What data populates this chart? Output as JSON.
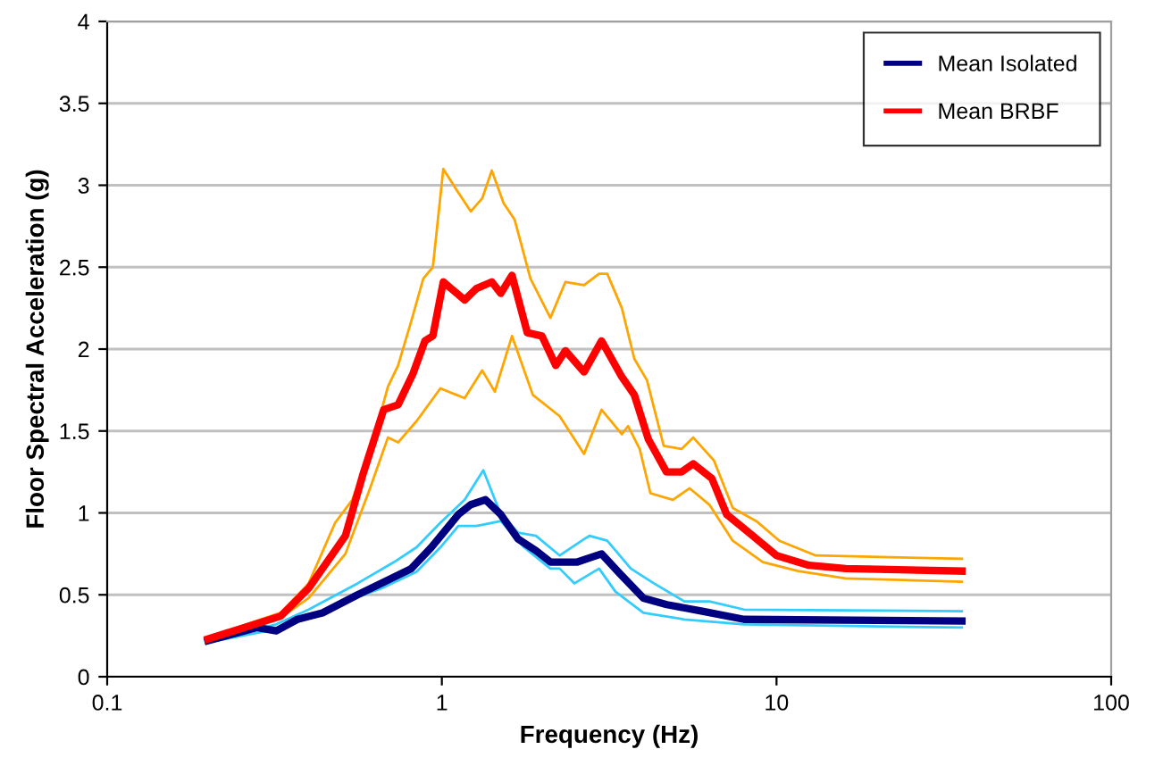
{
  "chart_data": {
    "type": "line",
    "xlabel": "Frequency (Hz)",
    "ylabel": "Floor Spectral Acceleration (g)",
    "log": "x",
    "xlim": [
      0.1,
      100
    ],
    "xticks": [
      0.1,
      1,
      10,
      100
    ],
    "ylim": [
      0,
      4
    ],
    "yticks": [
      0,
      0.5,
      1,
      1.5,
      2,
      2.5,
      3,
      3.5,
      4
    ],
    "grid": "y",
    "legend": "top right",
    "marker": "none",
    "line_style": "solid",
    "series": [
      {
        "color": "#ffa500",
        "x": [
          0.2,
          0.33,
          0.4,
          0.48,
          0.54,
          0.61,
          0.69,
          0.74,
          0.81,
          0.88,
          0.94,
          1.01,
          1.1,
          1.22,
          1.32,
          1.41,
          1.53,
          1.65,
          1.84,
          2.11,
          2.34,
          2.66,
          2.95,
          3.12,
          3.45,
          3.76,
          4.1,
          4.6,
          5.2,
          5.64,
          6.5,
          7.4,
          8.7,
          10.2,
          13.1,
          35.8
        ],
        "values": [
          0.24,
          0.39,
          0.57,
          0.94,
          1.08,
          1.37,
          1.77,
          1.9,
          2.17,
          2.43,
          2.5,
          3.1,
          2.98,
          2.84,
          2.92,
          3.09,
          2.89,
          2.79,
          2.43,
          2.19,
          2.41,
          2.39,
          2.46,
          2.46,
          2.25,
          1.94,
          1.81,
          1.41,
          1.39,
          1.46,
          1.32,
          1.03,
          0.95,
          0.83,
          0.74,
          0.72
        ]
      },
      {
        "color": "#ffa500",
        "x": [
          0.2,
          0.33,
          0.4,
          0.515,
          0.61,
          0.69,
          0.74,
          0.84,
          0.99,
          1.17,
          1.32,
          1.44,
          1.62,
          1.87,
          2.25,
          2.66,
          3.0,
          3.45,
          3.6,
          3.9,
          4.2,
          4.9,
          5.5,
          6.3,
          7.4,
          9.1,
          11.6,
          16.1,
          35.8
        ],
        "values": [
          0.23,
          0.36,
          0.48,
          0.75,
          1.15,
          1.46,
          1.43,
          1.56,
          1.76,
          1.7,
          1.87,
          1.74,
          2.08,
          1.72,
          1.59,
          1.36,
          1.63,
          1.48,
          1.53,
          1.39,
          1.12,
          1.08,
          1.15,
          1.05,
          0.83,
          0.7,
          0.645,
          0.6,
          0.58
        ]
      },
      {
        "color": "#33ccff",
        "x": [
          0.2,
          0.32,
          0.4,
          0.56,
          0.72,
          0.84,
          0.99,
          1.17,
          1.33,
          1.5,
          1.69,
          1.91,
          2.25,
          2.66,
          2.76,
          3.12,
          3.67,
          4.3,
          5.3,
          6.3,
          8.0,
          35.8
        ],
        "values": [
          0.22,
          0.32,
          0.41,
          0.57,
          0.7,
          0.79,
          0.94,
          1.08,
          1.26,
          0.99,
          0.88,
          0.86,
          0.74,
          0.84,
          0.86,
          0.83,
          0.66,
          0.57,
          0.46,
          0.46,
          0.41,
          0.4
        ]
      },
      {
        "color": "#33ccff",
        "x": [
          0.2,
          0.34,
          0.515,
          0.66,
          0.84,
          0.99,
          1.12,
          1.27,
          1.5,
          1.76,
          2.11,
          2.25,
          2.49,
          2.95,
          3.3,
          4.0,
          5.3,
          8.0,
          35.8
        ],
        "values": [
          0.21,
          0.3,
          0.46,
          0.54,
          0.64,
          0.79,
          0.92,
          0.92,
          0.95,
          0.79,
          0.66,
          0.66,
          0.57,
          0.66,
          0.52,
          0.39,
          0.35,
          0.32,
          0.3
        ]
      },
      {
        "name": "Mean Isolated",
        "color": "#000080",
        "x": [
          0.2,
          0.28,
          0.32,
          0.37,
          0.44,
          0.56,
          0.69,
          0.81,
          0.93,
          1.12,
          1.22,
          1.35,
          1.5,
          1.69,
          1.91,
          2.11,
          2.54,
          3.0,
          3.4,
          4.0,
          4.7,
          6.0,
          8.0,
          35.8
        ],
        "values": [
          0.22,
          0.3,
          0.28,
          0.35,
          0.39,
          0.5,
          0.59,
          0.66,
          0.79,
          0.99,
          1.05,
          1.08,
          0.99,
          0.84,
          0.77,
          0.7,
          0.7,
          0.75,
          0.63,
          0.48,
          0.44,
          0.4,
          0.35,
          0.34
        ]
      },
      {
        "name": "Mean BRBF",
        "color": "#ff0000",
        "x": [
          0.2,
          0.33,
          0.4,
          0.515,
          0.58,
          0.67,
          0.74,
          0.82,
          0.89,
          0.94,
          1.01,
          1.17,
          1.27,
          1.41,
          1.5,
          1.62,
          1.8,
          1.99,
          2.19,
          2.34,
          2.66,
          3.0,
          3.45,
          3.76,
          4.14,
          4.69,
          5.2,
          5.64,
          6.41,
          7.1,
          8.5,
          10.0,
          12.5,
          16.1,
          35.8
        ],
        "values": [
          0.23,
          0.37,
          0.54,
          0.86,
          1.23,
          1.63,
          1.66,
          1.85,
          2.05,
          2.08,
          2.41,
          2.3,
          2.37,
          2.41,
          2.34,
          2.45,
          2.1,
          2.08,
          1.9,
          1.99,
          1.86,
          2.05,
          1.83,
          1.72,
          1.45,
          1.25,
          1.25,
          1.3,
          1.21,
          0.99,
          0.86,
          0.74,
          0.68,
          0.66,
          0.645
        ]
      }
    ]
  }
}
